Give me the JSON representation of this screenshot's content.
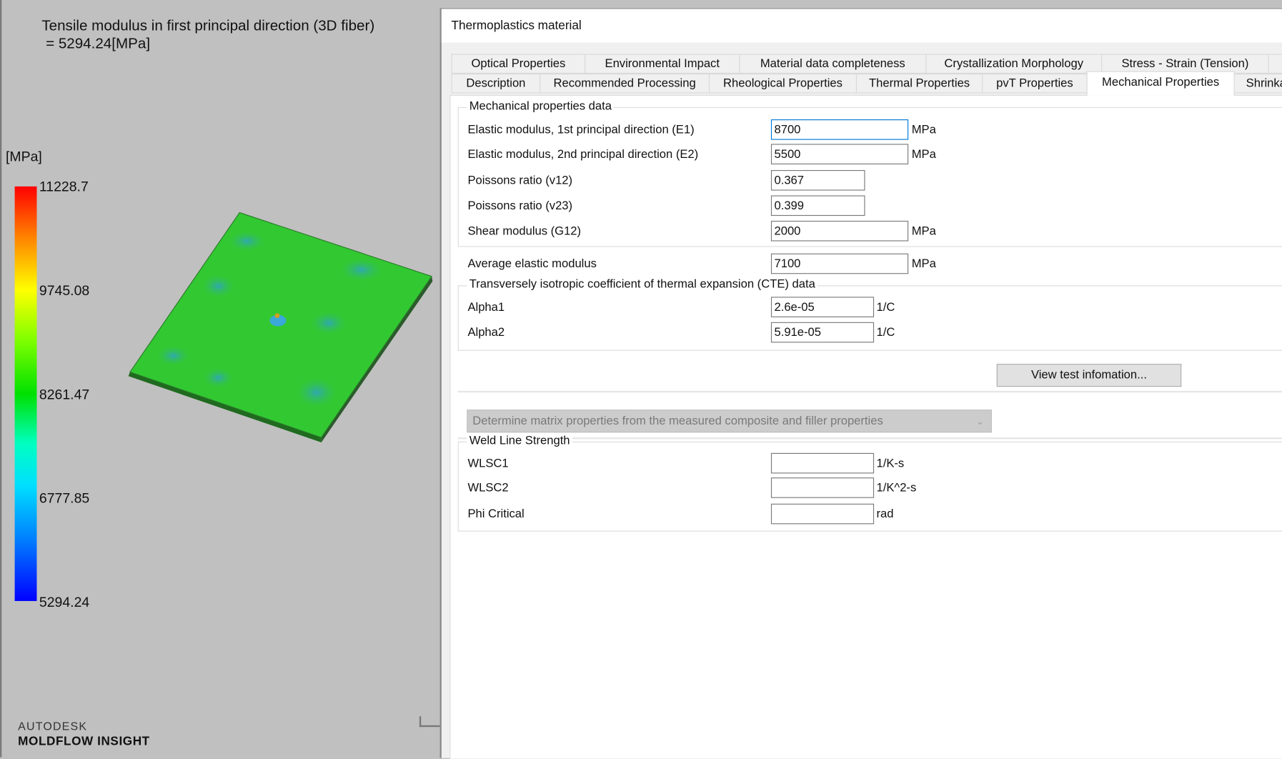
{
  "viewport": {
    "result_title": "Tensile modulus in first principal direction (3D fiber)\n = 5294.24[MPa]",
    "legend": {
      "unit": "[MPa]",
      "labels": [
        "11228.7",
        "9745.08",
        "8261.47",
        "6777.85",
        "5294.24"
      ],
      "max_color": "#ff0000",
      "min_color": "#0000ff"
    },
    "logo": {
      "brand": "AUTODESK",
      "product": "MOLDFLOW INSIGHT"
    }
  },
  "dialog": {
    "title": "Thermoplastics material",
    "tabs_row1": [
      "Optical Properties",
      "Environmental Impact",
      "Material data completeness",
      "Crystallization Morphology",
      "Stress - Strain (Tension)",
      ""
    ],
    "tabs_row2": [
      "Description",
      "Recommended Processing",
      "Rheological Properties",
      "Thermal Properties",
      "pvT Properties",
      "Mechanical Properties",
      "Shrinka"
    ],
    "active_tab": "Mechanical Properties",
    "mech": {
      "heading": "Mechanical properties data",
      "rows": [
        {
          "label": "Elastic modulus, 1st principal direction (E1)",
          "value": "8700",
          "unit": "MPa"
        },
        {
          "label": "Elastic modulus, 2nd principal direction (E2)",
          "value": "5500",
          "unit": "MPa"
        },
        {
          "label": "Poissons ratio (v12)",
          "value": "0.367",
          "unit": ""
        },
        {
          "label": "Poissons ratio (v23)",
          "value": "0.399",
          "unit": ""
        },
        {
          "label": "Shear modulus (G12)",
          "value": "2000",
          "unit": "MPa"
        }
      ]
    },
    "avg": {
      "label": "Average elastic modulus",
      "value": "7100",
      "unit": "MPa"
    },
    "cte": {
      "heading": "Transversely isotropic coefficient of thermal expansion (CTE) data",
      "rows": [
        {
          "label": "Alpha1",
          "value": "2.6e-05",
          "unit": "1/C"
        },
        {
          "label": "Alpha2",
          "value": "5.91e-05",
          "unit": "1/C"
        }
      ]
    },
    "view_test_button": "View test infomation...",
    "matrix_select": "Determine matrix properties from the measured composite and filler properties",
    "weld": {
      "heading": "Weld Line Strength",
      "rows": [
        {
          "label": "WLSC1",
          "value": "",
          "unit": "1/K-s"
        },
        {
          "label": "WLSC2",
          "value": "",
          "unit": "1/K^2-s"
        },
        {
          "label": "Phi Critical",
          "value": "",
          "unit": "rad"
        }
      ]
    }
  }
}
